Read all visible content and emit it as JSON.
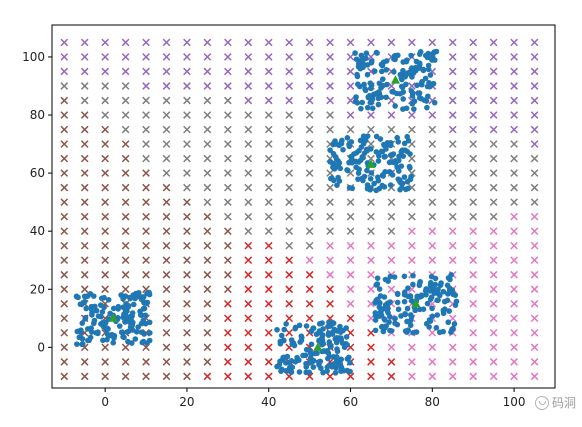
{
  "chart_data": {
    "type": "scatter",
    "title": "",
    "xlabel": "",
    "ylabel": "",
    "xlim": [
      -13,
      110
    ],
    "ylim": [
      -14,
      111
    ],
    "grid": false,
    "x_ticks": [
      "0",
      "20",
      "40",
      "60",
      "80",
      "100"
    ],
    "y_ticks": [
      "0",
      "20",
      "40",
      "60",
      "80",
      "100"
    ],
    "grid_markers": {
      "marker": "x",
      "x_range": [
        -10,
        105
      ],
      "y_range": [
        -10,
        105
      ],
      "step": 5,
      "assignment": "nearest_center"
    },
    "clusters": [
      {
        "center": [
          2,
          10
        ],
        "spread": [
          [
            -7,
            11
          ],
          [
            1,
            19
          ]
        ],
        "region_color": "#8c564b"
      },
      {
        "center": [
          52,
          0
        ],
        "spread": [
          [
            42,
            60
          ],
          [
            -9,
            9
          ]
        ],
        "region_color": "#d62728"
      },
      {
        "center": [
          76,
          15
        ],
        "spread": [
          [
            66,
            86
          ],
          [
            5,
            25
          ]
        ],
        "region_color": "#e377c2"
      },
      {
        "center": [
          65,
          63
        ],
        "spread": [
          [
            55,
            75
          ],
          [
            54,
            73
          ]
        ],
        "region_color": "#7f7f7f"
      },
      {
        "center": [
          71,
          92
        ],
        "spread": [
          [
            61,
            81
          ],
          [
            82,
            102
          ]
        ],
        "region_color": "#9467bd"
      }
    ],
    "point_color": "#1f77b4",
    "center_color": "#2ca02c"
  },
  "watermark": {
    "text": "码洞"
  }
}
